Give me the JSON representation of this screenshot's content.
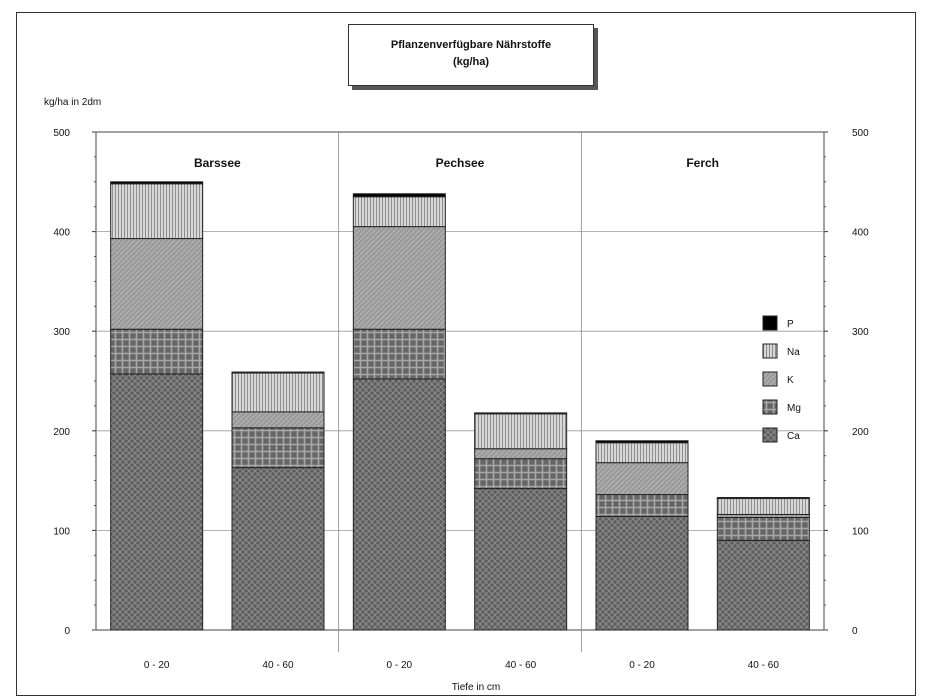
{
  "chart_data": {
    "type": "bar",
    "stacked": true,
    "title": "Pflanzenverfügbare Nährstoffe",
    "subtitle": "(kg/ha)",
    "ylabel": "kg/ha in 2dm",
    "xlabel": "Tiefe in cm",
    "ylim": [
      0,
      500
    ],
    "yticks": [
      0,
      100,
      200,
      300,
      400,
      500
    ],
    "groups": [
      "Barssee",
      "Pechsee",
      "Ferch"
    ],
    "categories": [
      "0 - 20",
      "40 - 60",
      "0 - 20",
      "40 - 60",
      "0 - 20",
      "40 - 60"
    ],
    "series": [
      {
        "name": "Ca",
        "values": [
          257,
          163,
          252,
          142,
          114,
          90
        ]
      },
      {
        "name": "Mg",
        "values": [
          45,
          40,
          50,
          30,
          22,
          23
        ]
      },
      {
        "name": "K",
        "values": [
          91,
          16,
          103,
          10,
          32,
          3
        ]
      },
      {
        "name": "Na",
        "values": [
          55,
          39,
          30,
          35,
          20,
          16
        ]
      },
      {
        "name": "P",
        "values": [
          2,
          1,
          3,
          1,
          2,
          1
        ]
      }
    ],
    "legend_position": "right",
    "grid": true,
    "colors": {
      "Ca": "#6a6a6a",
      "Mg": "#707070",
      "K": "#9c9c9c",
      "Na": "#d4d4d4",
      "P": "#000000"
    }
  }
}
